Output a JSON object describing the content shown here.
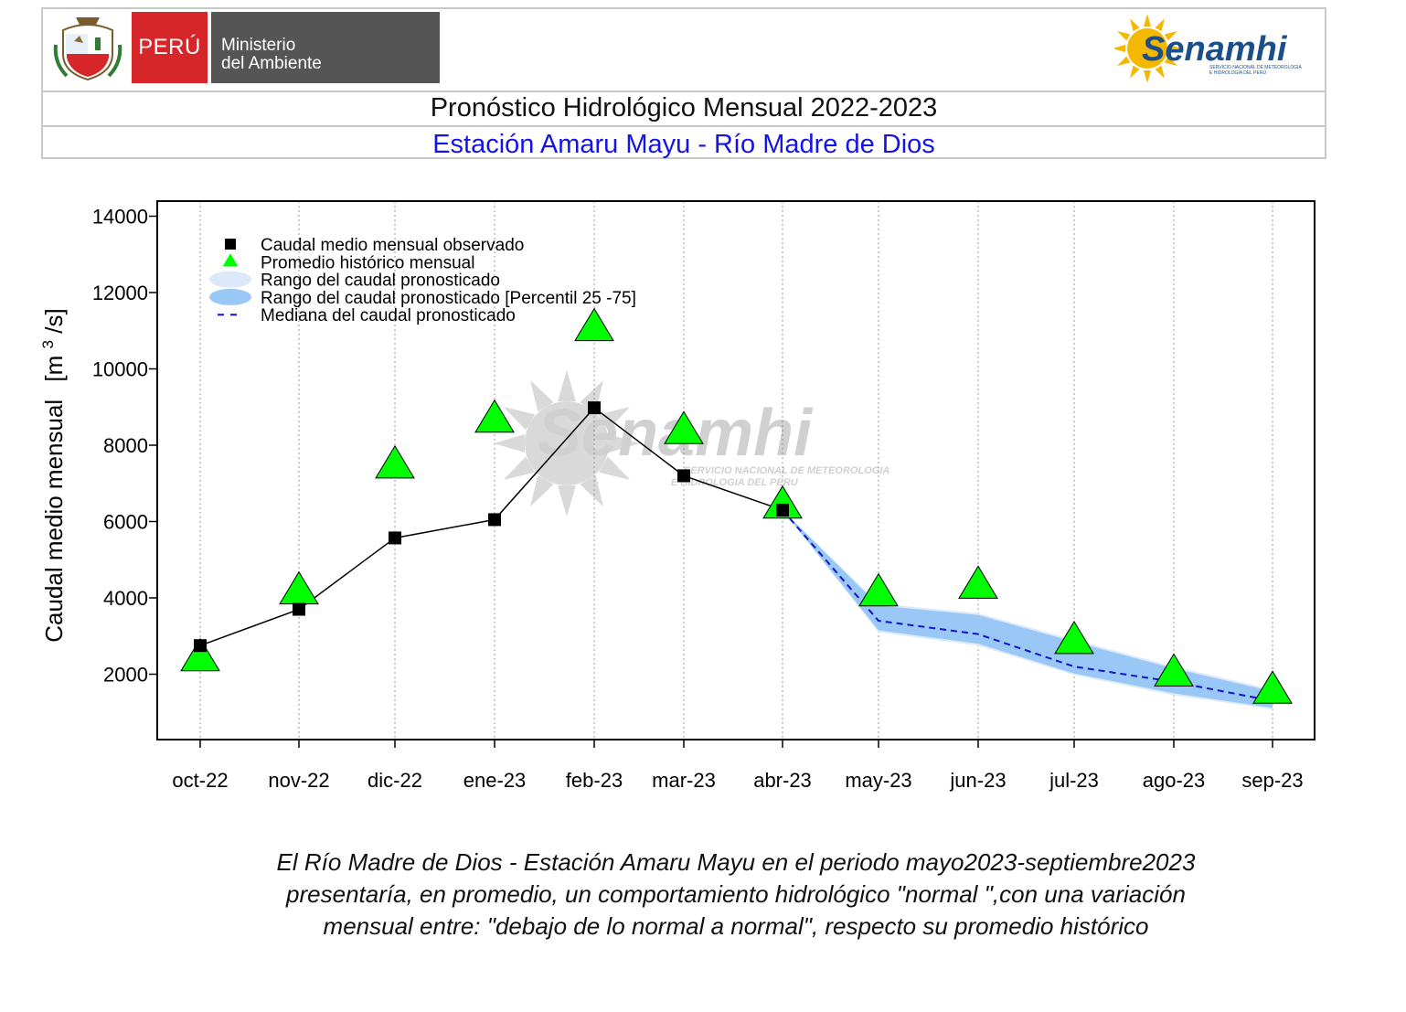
{
  "header": {
    "peru_label": "PERÚ",
    "ministry_line1": "Ministerio",
    "ministry_line2": "del Ambiente",
    "senamhi_name": "Senamhi",
    "senamhi_tagline_1": "SERVICIO NACIONAL DE METEOROLOGÍA",
    "senamhi_tagline_2": "E HIDROLOGÍA DEL PERÚ",
    "title": "Pronóstico Hidrológico Mensual 2022-2023",
    "subtitle": "Estación Amaru Mayu - Río Madre de Dios"
  },
  "watermark": {
    "name": "Senamhi",
    "line1": "SERVICIO NACIONAL DE METEOROLOGIA",
    "line2": "E HIDROLOGIA DEL PERU"
  },
  "chart_data": {
    "type": "line",
    "ylabel_main": "Caudal medio mensual",
    "ylabel_unit_open": "[m",
    "ylabel_unit_sup": "3",
    "ylabel_unit_close": "/s]",
    "ylim": [
      0,
      14000
    ],
    "yticks": [
      2000,
      4000,
      6000,
      8000,
      10000,
      12000,
      14000
    ],
    "ytick_labels": [
      "2000",
      "4000",
      "6000",
      "8000",
      "10000",
      "12000",
      "14000"
    ],
    "categories": [
      "oct-22",
      "nov-22",
      "dic-22",
      "ene-23",
      "feb-23",
      "mar-23",
      "abr-23",
      "may-23",
      "jun-23",
      "jul-23",
      "ago-23",
      "sep-23"
    ],
    "grid": "vertical dotted",
    "legend_position": "top-left",
    "legend": [
      "Caudal medio mensual observado",
      "Promedio histórico mensual",
      "Rango del caudal pronosticado",
      "Rango del caudal pronosticado [Percentil 25 -75]",
      "Mediana del caudal pronosticado"
    ],
    "series": [
      {
        "name": "Caudal medio mensual observado",
        "values": [
          2750,
          3700,
          5570,
          6050,
          8980,
          7200,
          6300,
          null,
          null,
          null,
          null,
          null
        ],
        "color": "#000000"
      },
      {
        "name": "Promedio histórico mensual",
        "values": [
          2450,
          4200,
          7500,
          8700,
          11100,
          8400,
          6450,
          4150,
          4350,
          2900,
          2050,
          1600
        ],
        "color": "#00ff00"
      },
      {
        "name": "Rango del caudal pronosticado",
        "upper": [
          null,
          null,
          null,
          null,
          null,
          null,
          6300,
          3850,
          3600,
          2900,
          2200,
          1600
        ],
        "lower": [
          null,
          null,
          null,
          null,
          null,
          null,
          6300,
          3100,
          2750,
          1980,
          1450,
          1080
        ],
        "color": "#dbe9fb"
      },
      {
        "name": "Rango del caudal pronosticado [Percentil 25 -75]",
        "upper": [
          null,
          null,
          null,
          null,
          null,
          null,
          6300,
          3800,
          3550,
          2850,
          2150,
          1550
        ],
        "lower": [
          null,
          null,
          null,
          null,
          null,
          null,
          6300,
          3150,
          2800,
          2020,
          1500,
          1120
        ],
        "color": "#99c8f7"
      },
      {
        "name": "Mediana del caudal pronosticado",
        "values": [
          null,
          null,
          null,
          null,
          null,
          null,
          6300,
          3400,
          3050,
          2200,
          1800,
          1300
        ],
        "color": "#1414c8"
      }
    ]
  },
  "caption": {
    "line1": "El Río Madre de Dios - Estación Amaru Mayu en el periodo mayo2023-septiembre2023",
    "line2": "presentaría, en promedio, un comportamiento hidrológico \"normal \",con una variación",
    "line3": "mensual entre: \"debajo de lo normal a normal\", respecto su promedio histórico"
  }
}
